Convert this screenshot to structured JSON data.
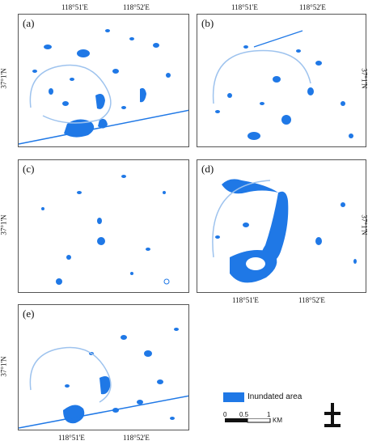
{
  "panels": [
    {
      "label": "(a)",
      "top_ticks": [
        "118°51'E",
        "118°52'E"
      ],
      "left_tick": "37°1'N",
      "right_tick": "",
      "bottom_ticks": []
    },
    {
      "label": "(b)",
      "top_ticks": [
        "118°51'E",
        "118°52'E"
      ],
      "left_tick": "",
      "right_tick": "37°1'N",
      "bottom_ticks": []
    },
    {
      "label": "(c)",
      "top_ticks": [],
      "left_tick": "37°1'N",
      "right_tick": "",
      "bottom_ticks": []
    },
    {
      "label": "(d)",
      "top_ticks": [],
      "left_tick": "",
      "right_tick": "37°1'N",
      "bottom_ticks": [
        "118°51'E",
        "118°52'E"
      ]
    },
    {
      "label": "(e)",
      "top_ticks": [],
      "left_tick": "37°1'N",
      "right_tick": "",
      "bottom_ticks": [
        "118°51'E",
        "118°52'E"
      ]
    }
  ],
  "legend": {
    "label": "Inundated area",
    "color": "#1f78e6"
  },
  "scale_bar": {
    "ticks": [
      "0",
      "0.5",
      "1"
    ],
    "unit": "KM"
  },
  "north_arrow_icon": "north-arrow-icon"
}
